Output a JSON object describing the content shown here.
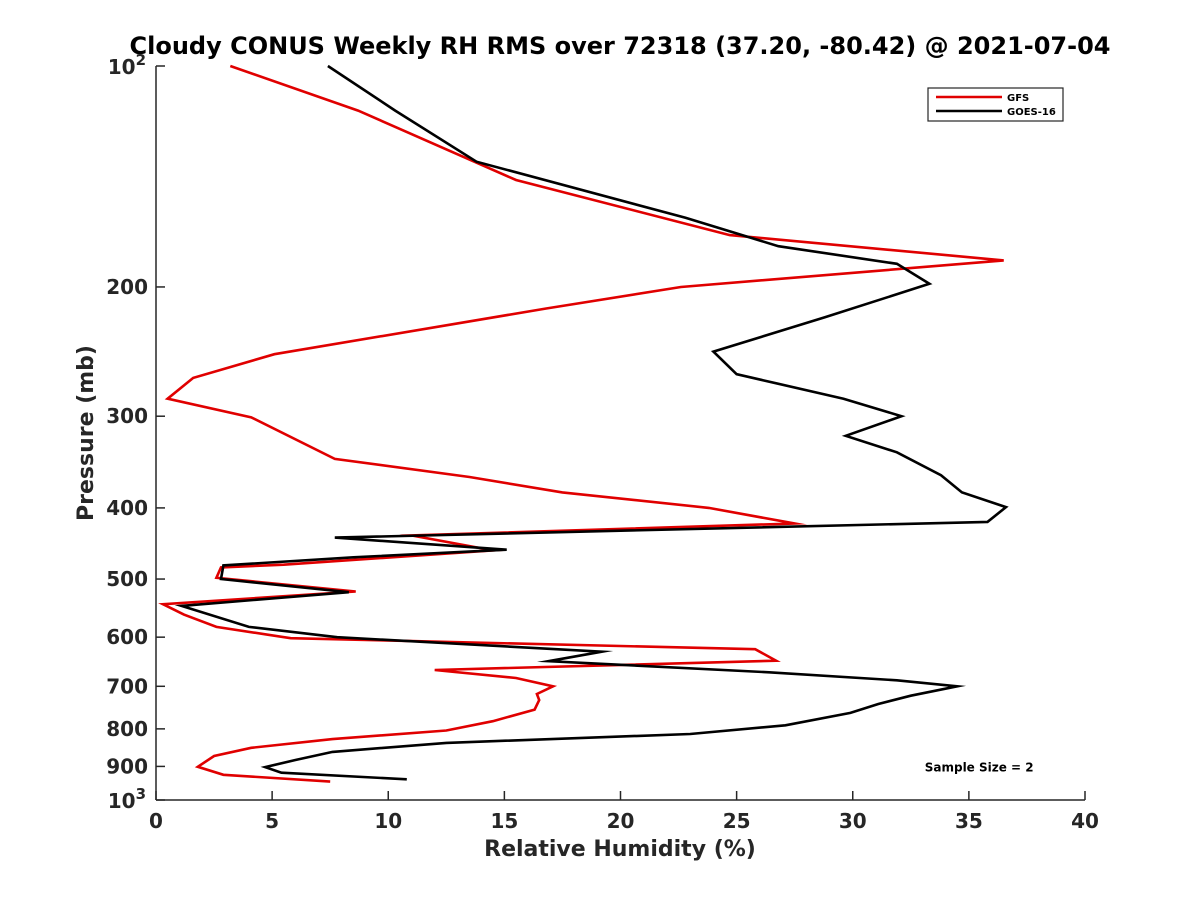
{
  "chart_data": {
    "type": "line",
    "title": "Cloudy CONUS Weekly RH RMS over 72318 (37.20, -80.42) @ 2021-07-04",
    "xlabel": "Relative Humidity (%)",
    "ylabel": "Pressure (mb)",
    "xlim": [
      0,
      40
    ],
    "ylim": [
      100,
      1000
    ],
    "yscale": "log",
    "y_reversed": true,
    "grid": false,
    "legend_position": "top-right",
    "x_ticks": [
      0,
      5,
      10,
      15,
      20,
      25,
      30,
      35,
      40
    ],
    "x_tick_labels": [
      "0",
      "5",
      "10",
      "15",
      "20",
      "25",
      "30",
      "35",
      "40"
    ],
    "y_ticks": [
      200,
      300,
      400,
      500,
      600,
      700,
      800,
      900
    ],
    "y_tick_labels": [
      "200",
      "300",
      "400",
      "500",
      "600",
      "700",
      "800",
      "900"
    ],
    "y_limit_labels": [
      {
        "value": 100,
        "base": "10",
        "exp": "2"
      },
      {
        "value": 1000,
        "base": "10",
        "exp": "3"
      }
    ],
    "series": [
      {
        "name": "GFS",
        "color": "#e00000",
        "points": [
          [
            3.2,
            100
          ],
          [
            8.7,
            115
          ],
          [
            15.5,
            143
          ],
          [
            24.7,
            170
          ],
          [
            36.5,
            184
          ],
          [
            22.6,
            200
          ],
          [
            16.8,
            214
          ],
          [
            5.1,
            247
          ],
          [
            1.6,
            266
          ],
          [
            0.5,
            284
          ],
          [
            4.1,
            301
          ],
          [
            7.7,
            343
          ],
          [
            13.5,
            363
          ],
          [
            17.5,
            381
          ],
          [
            23.8,
            400
          ],
          [
            27.5,
            420
          ],
          [
            11.0,
            436
          ],
          [
            14.5,
            457
          ],
          [
            5.5,
            478
          ],
          [
            2.8,
            482
          ],
          [
            2.6,
            498
          ],
          [
            8.6,
            520
          ],
          [
            0.3,
            541
          ],
          [
            1.2,
            559
          ],
          [
            2.6,
            581
          ],
          [
            5.8,
            602
          ],
          [
            25.8,
            623
          ],
          [
            26.7,
            646
          ],
          [
            12.0,
            665
          ],
          [
            15.5,
            682
          ],
          [
            17.1,
            700
          ],
          [
            16.4,
            717
          ],
          [
            16.5,
            731
          ],
          [
            16.3,
            753
          ],
          [
            14.5,
            781
          ],
          [
            12.5,
            804
          ],
          [
            7.6,
            826
          ],
          [
            4.1,
            849
          ],
          [
            2.5,
            871
          ],
          [
            1.8,
            901
          ],
          [
            2.9,
            924
          ],
          [
            7.5,
            944
          ]
        ]
      },
      {
        "name": "GOES-16",
        "color": "#000000",
        "points": [
          [
            7.4,
            100
          ],
          [
            10.3,
            115
          ],
          [
            13.8,
            135
          ],
          [
            22.8,
            161
          ],
          [
            26.8,
            176
          ],
          [
            31.9,
            186
          ],
          [
            33.3,
            198
          ],
          [
            28.8,
            220
          ],
          [
            24.0,
            245
          ],
          [
            25.0,
            263
          ],
          [
            29.6,
            284
          ],
          [
            32.1,
            300
          ],
          [
            29.7,
            319
          ],
          [
            31.9,
            336
          ],
          [
            33.8,
            361
          ],
          [
            34.7,
            381
          ],
          [
            36.6,
            399
          ],
          [
            35.8,
            418
          ],
          [
            7.7,
            439
          ],
          [
            15.1,
            456
          ],
          [
            8.5,
            467
          ],
          [
            2.9,
            479
          ],
          [
            2.8,
            500
          ],
          [
            8.3,
            521
          ],
          [
            1.1,
            544
          ],
          [
            4.0,
            581
          ],
          [
            7.8,
            600
          ],
          [
            19.2,
            628
          ],
          [
            16.9,
            647
          ],
          [
            26.4,
            670
          ],
          [
            31.9,
            687
          ],
          [
            34.5,
            700
          ],
          [
            32.5,
            721
          ],
          [
            31.1,
            740
          ],
          [
            29.9,
            761
          ],
          [
            27.1,
            791
          ],
          [
            23.0,
            813
          ],
          [
            12.5,
            836
          ],
          [
            7.6,
            860
          ],
          [
            6.0,
            882
          ],
          [
            4.7,
            902
          ],
          [
            5.4,
            918
          ],
          [
            10.8,
            937
          ]
        ]
      }
    ],
    "annotations": [
      {
        "text": "Sample Size = 2",
        "x": 33.1,
        "y": 900
      }
    ]
  }
}
